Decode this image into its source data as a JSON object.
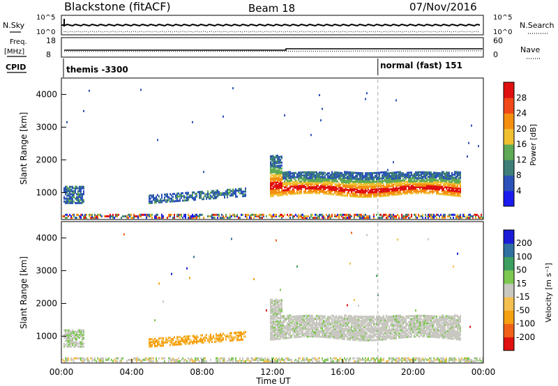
{
  "header": {
    "station": "Blackstone (fitACF)",
    "beam": "Beam 18",
    "date": "07/Nov/2016"
  },
  "aux_panels": {
    "nsky_label": "N.Sky",
    "nsky_top": "10^5",
    "nsky_bottom": "10^0",
    "nsky_right_top": "10^5",
    "nsky_right_bottom": "10^0",
    "nsearch_label": "N.Search",
    "freq_label": "Freq.",
    "freq_unit": "[MHz]",
    "freq_top": "18",
    "freq_bottom": "8",
    "nave_top": "60",
    "nave_bottom": "0",
    "nave_label": "Nave",
    "cpid_label": "CPID",
    "cpid_1": "themis -3300",
    "cpid_2": "normal (fast) 151"
  },
  "colors": {
    "power": [
      "#1b1bf0",
      "#2b52b8",
      "#3d7f78",
      "#5faa55",
      "#f0c030",
      "#f58f10",
      "#f04818",
      "#e01010"
    ],
    "velocity": [
      "#e01010",
      "#f06018",
      "#f5a010",
      "#f5c050",
      "#c8c8c0",
      "#7cc850",
      "#3d9f60",
      "#2f70a0",
      "#1b1bd8"
    ]
  },
  "chart_data": [
    {
      "type": "heatmap",
      "ylabel": "Slant Range [km]",
      "xlabel": "Time UT",
      "x_ticks": [
        "00:00",
        "04:00",
        "08:00",
        "12:00",
        "16:00",
        "20:00",
        "00:00"
      ],
      "x_range_hours": [
        0,
        24
      ],
      "y_ticks": [
        "1000",
        "2000",
        "3000",
        "4000"
      ],
      "y_range_km": [
        180,
        4500
      ],
      "colorbar": {
        "label": "Power [dB]",
        "ticks": [
          "4",
          "8",
          "12",
          "16",
          "20",
          "24",
          "28"
        ],
        "range": [
          0,
          32
        ]
      },
      "cpid_change_hour": 18
    },
    {
      "type": "heatmap",
      "ylabel": "Slant Range [km]",
      "xlabel": "Time UT",
      "x_ticks": [
        "00:00",
        "04:00",
        "08:00",
        "12:00",
        "16:00",
        "20:00",
        "00:00"
      ],
      "x_range_hours": [
        0,
        24
      ],
      "y_ticks": [
        "1000",
        "2000",
        "3000",
        "4000"
      ],
      "y_range_km": [
        180,
        4500
      ],
      "colorbar": {
        "label": "Velocity [m s⁻¹]",
        "ticks": [
          "200",
          "100",
          "50",
          "15",
          "-15",
          "-50",
          "-100",
          "-200"
        ]
      }
    }
  ]
}
